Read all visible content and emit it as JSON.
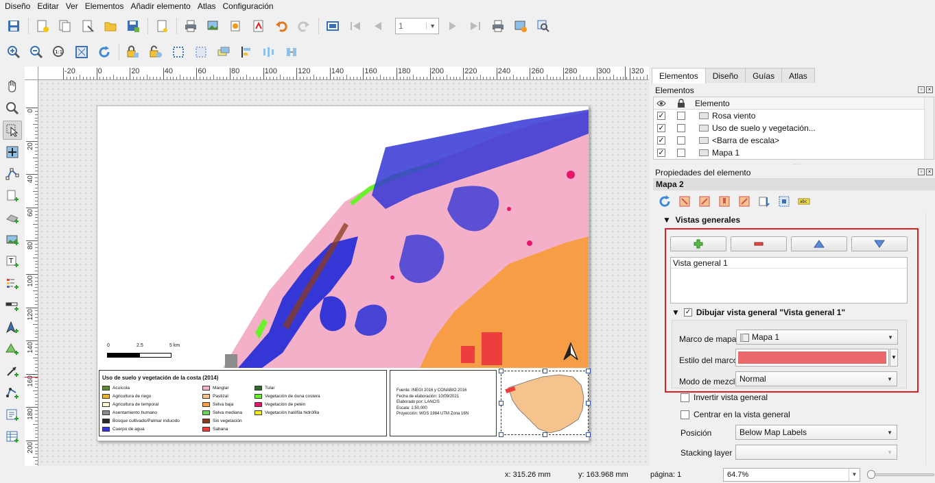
{
  "menu": [
    "Diseño",
    "Editar",
    "Ver",
    "Elementos",
    "Añadir elemento",
    "Atlas",
    "Configuración"
  ],
  "toolbar": {
    "page_value": "1"
  },
  "ruler": {
    "h_ticks": [
      "-20",
      "0",
      "20",
      "40",
      "60",
      "80",
      "100",
      "120",
      "140",
      "160",
      "180",
      "200",
      "220",
      "240",
      "260",
      "280",
      "300",
      "320"
    ],
    "v_ticks": [
      "0",
      "20",
      "40",
      "60",
      "80",
      "100",
      "120",
      "140",
      "160",
      "180",
      "200"
    ]
  },
  "map": {
    "scalebar": {
      "l0": "0",
      "l1": "2.5",
      "l2": "5 km"
    }
  },
  "legend": {
    "title": "Uso de suelo y vegetación de la costa (2014)",
    "items": [
      {
        "label": "Acuícola",
        "color": "#5e8b35"
      },
      {
        "label": "Agricultura de riego",
        "color": "#e8b22a"
      },
      {
        "label": "Agricultura de temporal",
        "color": "#fdf6d0"
      },
      {
        "label": "Asentamiento humano",
        "color": "#8c8c8c"
      },
      {
        "label": "Bosque cultivado/Palmar inducido",
        "color": "#2a2a2a"
      },
      {
        "label": "Cuerpo de agua",
        "color": "#3437d6"
      },
      {
        "label": "Manglar",
        "color": "#f4b0c8"
      },
      {
        "label": "Pastizal",
        "color": "#f6c28e"
      },
      {
        "label": "Selva baja",
        "color": "#f79d45"
      },
      {
        "label": "Selva mediana",
        "color": "#6cd55c"
      },
      {
        "label": "Sin vegetación",
        "color": "#8a3b1e"
      },
      {
        "label": "Sabana",
        "color": "#ed3e3e"
      },
      {
        "label": "Tular",
        "color": "#2e6b2a"
      },
      {
        "label": "Vegetación de duna costera",
        "color": "#6cf22d"
      },
      {
        "label": "Vegetación de petén",
        "color": "#e8156c"
      },
      {
        "label": "Vegetación halófila hidrófila",
        "color": "#f3ee1d"
      }
    ]
  },
  "credits": [
    "Fuente: INEGI 2016 y CONABIO 2016",
    "Fecha de elaboración: 10/09/2021",
    "Elaborado por: LANCIS",
    "Escala: 1:50,000",
    "Proyección: WGS 1984 UTM Zona 16N"
  ],
  "status": {
    "x": "x: 315.26 mm",
    "y": "y: 163.968 mm",
    "page": "página: 1",
    "zoom": "64.7%"
  },
  "panel": {
    "tabs": [
      "Elementos",
      "Diseño",
      "Guías",
      "Atlas"
    ],
    "items_title": "Elementos",
    "col_element": "Elemento",
    "items": [
      {
        "name": "Rosa viento",
        "visible": true,
        "locked": false
      },
      {
        "name": "Uso de suelo y vegetación...",
        "visible": true,
        "locked": false
      },
      {
        "name": "<Barra de escala>",
        "visible": true,
        "locked": false
      },
      {
        "name": "Mapa 1",
        "visible": true,
        "locked": false
      }
    ],
    "props_title": "Propiedades del elemento",
    "item_name": "Mapa 2",
    "overviews_section": "Vistas generales",
    "overview_list": [
      "Vista general 1"
    ],
    "draw_overview": "Dibujar vista general \"Vista general 1\"",
    "draw_overview_checked": true,
    "frame_label": "Marco de mapa",
    "frame_value": "Mapa 1",
    "style_label": "Estilo del marco",
    "frame_color": "#e8686b",
    "blend_label": "Modo de mezcla",
    "blend_value": "Normal",
    "invert_label": "Invertir vista general",
    "center_label": "Centrar en la vista general",
    "position_label": "Posición",
    "position_value": "Below Map Labels",
    "stacking_label": "Stacking layer",
    "stacking_value": ""
  }
}
